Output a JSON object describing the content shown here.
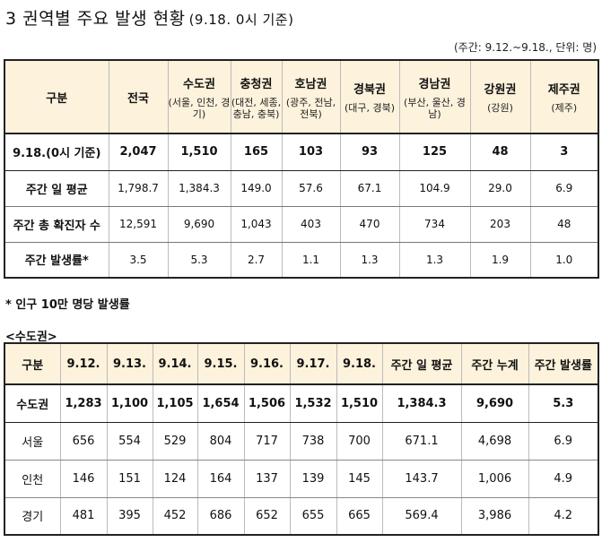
{
  "title": "3 권역별 주요 발생 현황",
  "title_sub": "(9.18. 0시 기준)",
  "unit_note": "(주간: 9.12.~9.18., 단위: 명)",
  "table1": {
    "header_label": "구분",
    "national_label": "전국",
    "regions": [
      {
        "name": "수도권",
        "sub": "(서울, 인천, 경기)"
      },
      {
        "name": "충청권",
        "sub": "(대전, 세종, 충남, 충북)"
      },
      {
        "name": "호남권",
        "sub": "(광주, 전남, 전북)"
      },
      {
        "name": "경북권",
        "sub": "(대구, 경북)"
      },
      {
        "name": "경남권",
        "sub": "(부산, 울산, 경남)"
      },
      {
        "name": "강원권",
        "sub": "(강원)"
      },
      {
        "name": "제주권",
        "sub": "(제주)"
      }
    ],
    "rows": [
      {
        "label": "9.18.(0시 기준)",
        "values": [
          "2,047",
          "1,510",
          "165",
          "103",
          "93",
          "125",
          "48",
          "3"
        ]
      },
      {
        "label": "주간 일 평균",
        "values": [
          "1,798.7",
          "1,384.3",
          "149.0",
          "57.6",
          "67.1",
          "104.9",
          "29.0",
          "6.9"
        ]
      },
      {
        "label": "주간 총 확진자 수",
        "values": [
          "12,591",
          "9,690",
          "1,043",
          "403",
          "470",
          "734",
          "203",
          "48"
        ]
      },
      {
        "label": "주간 발생률*",
        "values": [
          "3.5",
          "5.3",
          "2.7",
          "1.1",
          "1.3",
          "1.3",
          "1.9",
          "1.0"
        ]
      }
    ]
  },
  "footnote": "* 인구 10만 명당 발생률",
  "section_label": "<수도권>",
  "table2": {
    "headers": [
      "구분",
      "9.12.",
      "9.13.",
      "9.14.",
      "9.15.",
      "9.16.",
      "9.17.",
      "9.18.",
      "주간 일 평균",
      "주간 누계",
      "주간 발생률"
    ],
    "rows": [
      {
        "label": "수도권",
        "values": [
          "1,283",
          "1,100",
          "1,105",
          "1,654",
          "1,506",
          "1,532",
          "1,510",
          "1,384.3",
          "9,690",
          "5.3"
        ]
      },
      {
        "label": "서울",
        "values": [
          "656",
          "554",
          "529",
          "804",
          "717",
          "738",
          "700",
          "671.1",
          "4,698",
          "6.9"
        ]
      },
      {
        "label": "인천",
        "values": [
          "146",
          "151",
          "124",
          "164",
          "137",
          "139",
          "145",
          "143.7",
          "1,006",
          "4.9"
        ]
      },
      {
        "label": "경기",
        "values": [
          "481",
          "395",
          "452",
          "686",
          "652",
          "655",
          "665",
          "569.4",
          "3,986",
          "4.2"
        ]
      }
    ]
  }
}
